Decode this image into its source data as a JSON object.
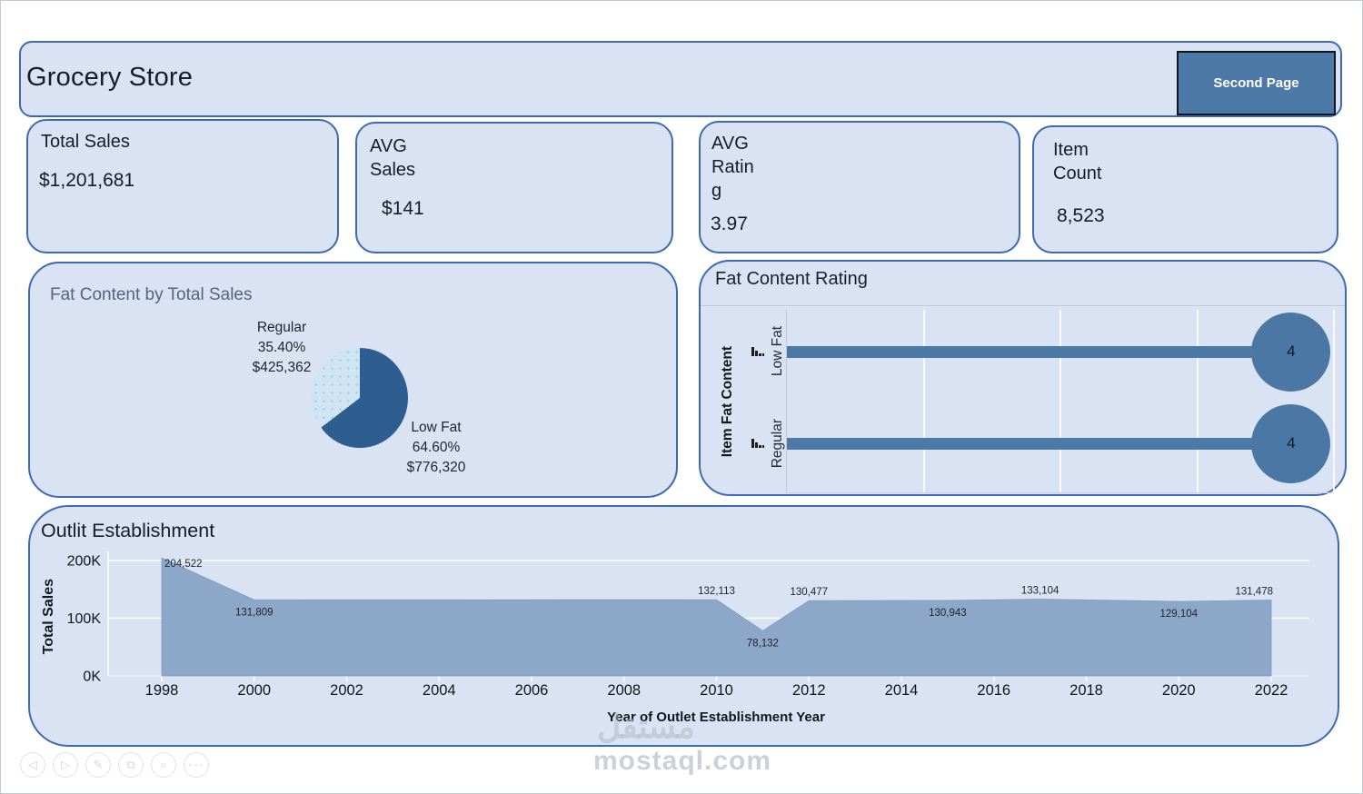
{
  "header": {
    "title": "Grocery Store",
    "button_label": "Second Page"
  },
  "kpis": [
    {
      "label": "Total Sales",
      "value": "$1,201,681"
    },
    {
      "label": "AVG\nSales",
      "value": "$141"
    },
    {
      "label": "AVG\nRatin\ng",
      "value": "3.97"
    },
    {
      "label": "Item\nCount",
      "value": "8,523"
    }
  ],
  "pie_panel": {
    "title": "Fat Content by Total Sales",
    "callouts": [
      {
        "name": "Regular",
        "percent": "35.40%",
        "amount": "$425,362"
      },
      {
        "name": "Low Fat",
        "percent": "64.60%",
        "amount": "$776,320"
      }
    ]
  },
  "rating_panel": {
    "title": "Fat Content Rating",
    "axis_title": "Item Fat Content",
    "categories": [
      {
        "label": "Low Fat",
        "value_text": "4"
      },
      {
        "label": "Regular",
        "value_text": "4"
      }
    ]
  },
  "area_panel": {
    "title": "Outlit Establishment",
    "xlabel": "Year of Outlet Establishment Year",
    "ylabel": "Total Sales"
  },
  "chart_data": [
    {
      "type": "pie",
      "title": "Fat Content by Total Sales",
      "slices": [
        {
          "label": "Low Fat",
          "percent": 64.6,
          "value": 776320,
          "value_text": "$776,320",
          "color": "#2d5e8f"
        },
        {
          "label": "Regular",
          "percent": 35.4,
          "value": 425362,
          "value_text": "$425,362",
          "color": "#cfe5f4"
        }
      ],
      "legend_position": "none"
    },
    {
      "type": "bar",
      "title": "Fat Content Rating",
      "orientation": "horizontal",
      "ylabel": "Item Fat Content",
      "categories": [
        "Low Fat",
        "Regular"
      ],
      "values": [
        4,
        4
      ],
      "xlim": [
        0,
        4.34
      ],
      "grid": true,
      "bar_color": "#4d79a6"
    },
    {
      "type": "area",
      "title": "Outlit Establishment",
      "xlabel": "Year of Outlet Establishment Year",
      "ylabel": "Total Sales",
      "x": [
        1998,
        2000,
        2010,
        2011,
        2012,
        2015,
        2017,
        2020,
        2022
      ],
      "values": [
        204522,
        131809,
        132113,
        78132,
        130477,
        130943,
        133104,
        129104,
        131478
      ],
      "value_labels": [
        "204,522",
        "131,809",
        "132,113",
        "78,132",
        "130,477",
        "130,943",
        "133,104",
        "129,104",
        "131,478"
      ],
      "ylim": [
        0,
        215000
      ],
      "yticks": [
        {
          "v": 0,
          "label": "0K"
        },
        {
          "v": 100000,
          "label": "100K"
        },
        {
          "v": 200000,
          "label": "200K"
        }
      ],
      "xticks": [
        1998,
        2000,
        2002,
        2004,
        2006,
        2008,
        2010,
        2012,
        2014,
        2016,
        2018,
        2020,
        2022
      ],
      "grid": true,
      "fill_color": "#8ca7c8"
    }
  ],
  "toolbar": {
    "icons": [
      {
        "name": "back-icon",
        "glyph": "◁"
      },
      {
        "name": "forward-icon",
        "glyph": "▷"
      },
      {
        "name": "edit-icon",
        "glyph": "✎"
      },
      {
        "name": "layers-icon",
        "glyph": "⧉"
      },
      {
        "name": "zoom-icon",
        "glyph": "⌕"
      },
      {
        "name": "more-icon",
        "glyph": "∘∘∘"
      }
    ]
  },
  "watermark": {
    "logo_text": "مستقل",
    "site_text": "mostaql.com"
  },
  "colors": {
    "card_bg": "#dae3f3",
    "card_border": "#3d6ab2",
    "accent_dark": "#2d5e8f",
    "accent_mid": "#4d79a6",
    "area_fill": "#8ca7c8",
    "pie_light": "#cfe5f4"
  }
}
